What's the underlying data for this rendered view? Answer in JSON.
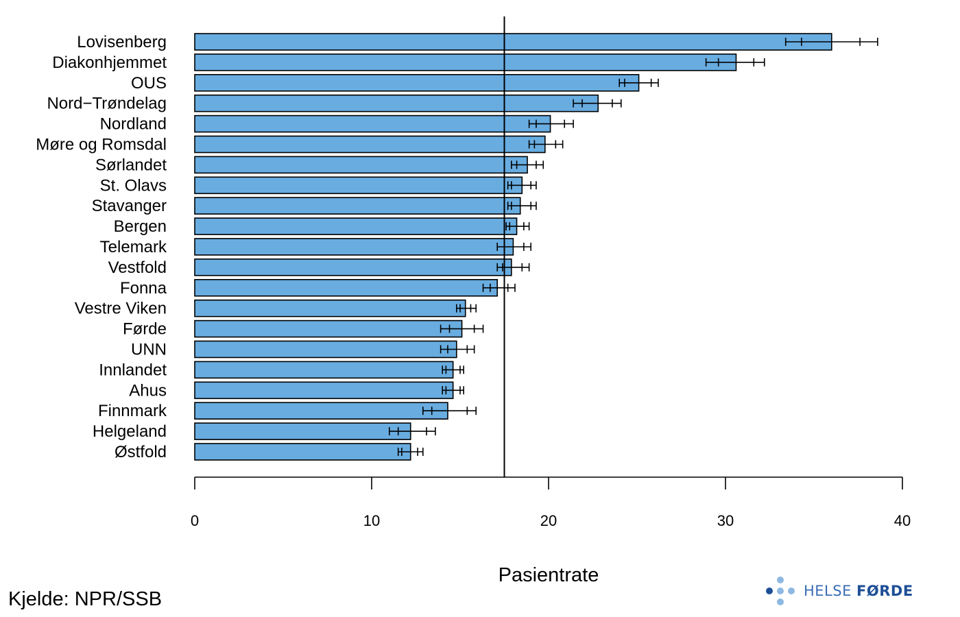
{
  "chart_data": {
    "type": "bar",
    "orientation": "horizontal",
    "categories": [
      "Lovisenberg",
      "Diakonhjemmet",
      "OUS",
      "Nord−Trøndelag",
      "Nordland",
      "Møre og Romsdal",
      "Sørlandet",
      "St. Olavs",
      "Stavanger",
      "Bergen",
      "Telemark",
      "Vestfold",
      "Fonna",
      "Vestre Viken",
      "Førde",
      "UNN",
      "Innlandet",
      "Ahus",
      "Finnmark",
      "Helgeland",
      "Østfold"
    ],
    "values": [
      36.0,
      30.6,
      25.1,
      22.8,
      20.1,
      19.8,
      18.8,
      18.5,
      18.4,
      18.2,
      18.0,
      17.9,
      17.1,
      15.3,
      15.1,
      14.8,
      14.6,
      14.6,
      14.3,
      12.2,
      12.2
    ],
    "error_outer": [
      [
        33.4,
        38.6
      ],
      [
        28.9,
        32.2
      ],
      [
        24.0,
        26.2
      ],
      [
        21.4,
        24.1
      ],
      [
        18.9,
        21.4
      ],
      [
        18.9,
        20.8
      ],
      [
        17.9,
        19.7
      ],
      [
        17.7,
        19.3
      ],
      [
        17.7,
        19.3
      ],
      [
        17.6,
        18.9
      ],
      [
        17.1,
        19.0
      ],
      [
        17.1,
        18.9
      ],
      [
        16.3,
        18.1
      ],
      [
        14.8,
        15.9
      ],
      [
        13.9,
        16.3
      ],
      [
        13.9,
        15.8
      ],
      [
        14.0,
        15.2
      ],
      [
        14.0,
        15.2
      ],
      [
        12.9,
        15.9
      ],
      [
        11.0,
        13.6
      ],
      [
        11.5,
        12.9
      ]
    ],
    "error_inner": [
      [
        34.3,
        37.6
      ],
      [
        29.6,
        31.6
      ],
      [
        24.3,
        25.8
      ],
      [
        21.9,
        23.6
      ],
      [
        19.3,
        20.9
      ],
      [
        19.2,
        20.4
      ],
      [
        18.2,
        19.3
      ],
      [
        17.9,
        19.0
      ],
      [
        17.9,
        19.0
      ],
      [
        17.8,
        18.6
      ],
      [
        17.5,
        18.6
      ],
      [
        17.4,
        18.5
      ],
      [
        16.7,
        17.7
      ],
      [
        15.0,
        15.6
      ],
      [
        14.4,
        15.8
      ],
      [
        14.3,
        15.4
      ],
      [
        14.2,
        15.0
      ],
      [
        14.2,
        15.0
      ],
      [
        13.4,
        15.4
      ],
      [
        11.5,
        13.1
      ],
      [
        11.7,
        12.6
      ]
    ],
    "reference_line": 17.5,
    "xlim": [
      0,
      40
    ],
    "x_ticks": [
      "0",
      "10",
      "20",
      "30",
      "40"
    ],
    "xlabel": "Pasientrate",
    "ylabel": "",
    "title": "",
    "grid": false,
    "bar_color": "#68ace0",
    "bar_edge_color": "#000000"
  },
  "source": "Kjelde: NPR/SSB",
  "logo": {
    "name": "helse-forde-logo",
    "word1": "HELSE ",
    "word2": "FØRDE",
    "dot_light": "#8db8e2",
    "dot_dark": "#1e4f96"
  }
}
